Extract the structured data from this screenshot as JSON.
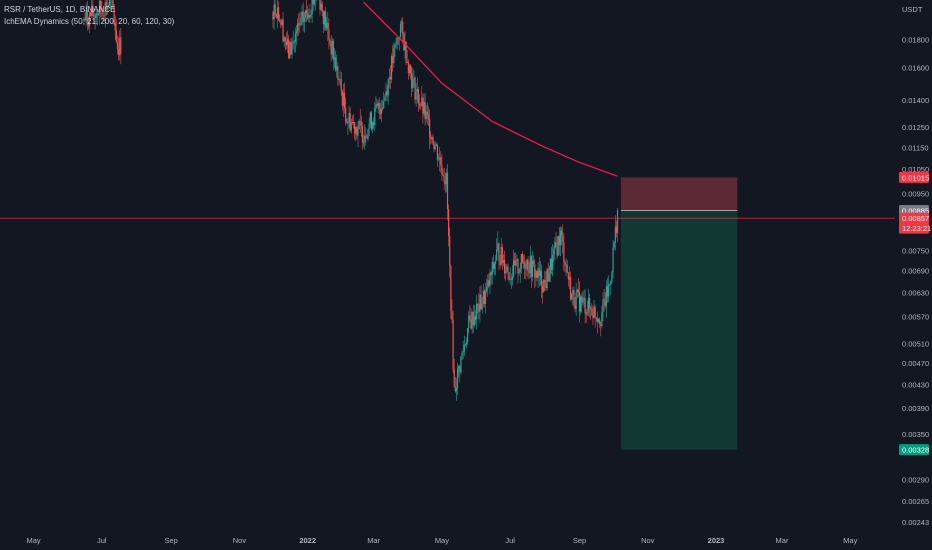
{
  "header": {
    "symbol_line": "RSR / TetherUS, 1D, BINANCE",
    "indicator_line": "IchEMA Dynamics (50, 21, 200, 20, 60, 120, 30)"
  },
  "price_axis": {
    "currency": "USDT",
    "ticks": [
      "0.01800",
      "0.01600",
      "0.01400",
      "0.01250",
      "0.01150",
      "0.01050",
      "0.00950",
      "0.00885",
      "0.00750",
      "0.00690",
      "0.00630",
      "0.00570",
      "0.00510",
      "0.00470",
      "0.00430",
      "0.00390",
      "0.00350",
      "0.00290",
      "0.00265",
      "0.00243"
    ]
  },
  "time_axis": {
    "ticks": [
      "May",
      "Jul",
      "Sep",
      "Nov",
      "2022",
      "Mar",
      "May",
      "Jul",
      "Sep",
      "Nov",
      "2023",
      "Mar",
      "May"
    ]
  },
  "badges": {
    "stop": {
      "text": "0.01015",
      "color": "#f23645"
    },
    "entry": {
      "text": "0.00885",
      "color": "#787b86"
    },
    "last": {
      "text": "0.00857",
      "color": "#f23645"
    },
    "countdown": {
      "text": "12:23:21",
      "color": "#f23645"
    },
    "target": {
      "text": "0.00328",
      "color": "#089981"
    }
  },
  "colors": {
    "background": "#131722",
    "up": "#26a69a",
    "down": "#ef5350",
    "ema": "#e91e4f",
    "risk_zone": "#5b2a34",
    "reward_zone": "#123834"
  },
  "chart_data": {
    "type": "candlestick",
    "title": "RSR / TetherUS, 1D, BINANCE",
    "y_scale": "log",
    "ylim": [
      0.00235,
      0.0205
    ],
    "x_range": [
      "2021-04-01",
      "2023-06-10"
    ],
    "price_path": [
      {
        "date": "2021-06-15",
        "value": 0.0195
      },
      {
        "date": "2021-07-10",
        "value": 0.021
      },
      {
        "date": "2021-07-15",
        "value": 0.0175
      },
      {
        "date": "2021-12-05",
        "value": 0.0205
      },
      {
        "date": "2021-12-15",
        "value": 0.017
      },
      {
        "date": "2021-12-25",
        "value": 0.019
      },
      {
        "date": "2022-01-10",
        "value": 0.022
      },
      {
        "date": "2022-01-25",
        "value": 0.0165
      },
      {
        "date": "2022-02-05",
        "value": 0.013
      },
      {
        "date": "2022-02-20",
        "value": 0.0122
      },
      {
        "date": "2022-03-10",
        "value": 0.014
      },
      {
        "date": "2022-03-25",
        "value": 0.019
      },
      {
        "date": "2022-04-05",
        "value": 0.015
      },
      {
        "date": "2022-04-20",
        "value": 0.0125
      },
      {
        "date": "2022-05-05",
        "value": 0.01
      },
      {
        "date": "2022-05-12",
        "value": 0.0042
      },
      {
        "date": "2022-05-25",
        "value": 0.0055
      },
      {
        "date": "2022-06-10",
        "value": 0.0063
      },
      {
        "date": "2022-06-20",
        "value": 0.0075
      },
      {
        "date": "2022-07-01",
        "value": 0.0068
      },
      {
        "date": "2022-07-15",
        "value": 0.0072
      },
      {
        "date": "2022-08-01",
        "value": 0.0065
      },
      {
        "date": "2022-08-15",
        "value": 0.008
      },
      {
        "date": "2022-08-25",
        "value": 0.0062
      },
      {
        "date": "2022-09-05",
        "value": 0.006
      },
      {
        "date": "2022-09-20",
        "value": 0.0057
      },
      {
        "date": "2022-09-28",
        "value": 0.0065
      },
      {
        "date": "2022-10-05",
        "value": 0.0088
      }
    ],
    "ema_line": [
      {
        "date": "2022-02-20",
        "value": 0.021
      },
      {
        "date": "2022-03-25",
        "value": 0.018
      },
      {
        "date": "2022-05-01",
        "value": 0.015
      },
      {
        "date": "2022-06-15",
        "value": 0.0128
      },
      {
        "date": "2022-08-01",
        "value": 0.0115
      },
      {
        "date": "2022-09-01",
        "value": 0.0108
      },
      {
        "date": "2022-10-05",
        "value": 0.0102
      }
    ],
    "position": {
      "type": "short",
      "start": "2022-10-08",
      "end": "2023-01-20",
      "entry": 0.00885,
      "stop": 0.01015,
      "target": 0.00328
    },
    "last_price": 0.00857
  }
}
